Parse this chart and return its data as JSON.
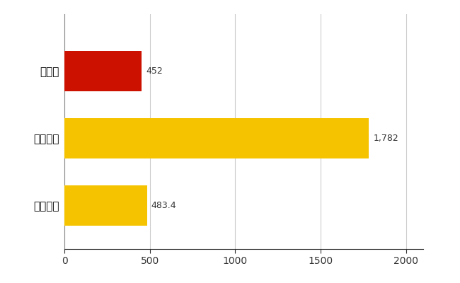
{
  "categories": [
    "全国平均",
    "全国最大",
    "京都府"
  ],
  "values": [
    483.4,
    1782,
    452
  ],
  "bar_colors": [
    "#F5C300",
    "#F5C300",
    "#CC1100"
  ],
  "value_labels": [
    "483.4",
    "1,782",
    "452"
  ],
  "xlim": [
    0,
    2100
  ],
  "xticks": [
    0,
    500,
    1000,
    1500,
    2000
  ],
  "bar_height": 0.6,
  "background_color": "#FFFFFF",
  "grid_color": "#CCCCCC",
  "label_fontsize": 11,
  "tick_fontsize": 10,
  "value_fontsize": 9,
  "text_color": "#333333"
}
